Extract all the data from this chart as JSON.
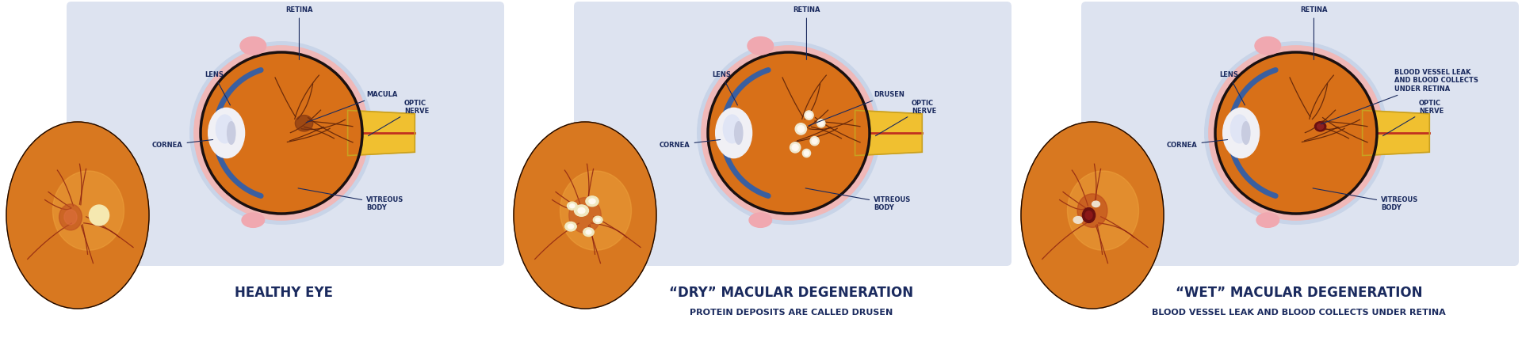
{
  "bg_color": "#ffffff",
  "panel_bg": "#dde3f0",
  "title_color": "#1a2a5e",
  "label_color": "#1a2a5e",
  "panels": [
    {
      "title": "HEALTHY EYE",
      "subtitle": "",
      "highlight": "normal"
    },
    {
      "title": "“DRY” MACULAR DEGENERATION",
      "subtitle": "PROTEIN DEPOSITS ARE CALLED DRUSEN",
      "highlight": "drusen"
    },
    {
      "title": "“WET” MACULAR DEGENERATION",
      "subtitle": "BLOOD VESSEL LEAK AND BLOOD COLLECTS UNDER RETINA",
      "highlight": "blood"
    }
  ]
}
